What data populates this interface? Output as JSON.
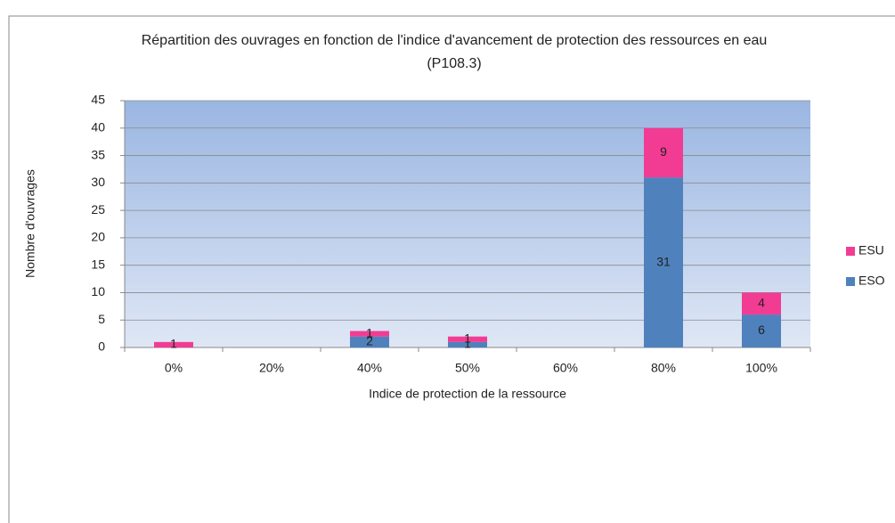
{
  "chart_data": {
    "type": "stacked_bar",
    "title": [
      "Répartition des ouvrages en fonction de l'indice d'avancement de protection des ressources  en eau",
      "(P108.3)"
    ],
    "x_label": "Indice de protection de la ressource",
    "y_label": "Nombre d'ouvrages",
    "categories": [
      "0%",
      "20%",
      "40%",
      "50%",
      "60%",
      "80%",
      "100%"
    ],
    "series": [
      {
        "name": "ESO",
        "color": "#4f81bd",
        "values": [
          0,
          0,
          2,
          1,
          0,
          31,
          6
        ]
      },
      {
        "name": "ESU",
        "color": "#f23c94",
        "values": [
          1,
          0,
          1,
          1,
          0,
          9,
          4
        ]
      }
    ],
    "ylim": [
      0,
      45
    ],
    "yticks": [
      0,
      5,
      10,
      15,
      20,
      25,
      30,
      35,
      40,
      45
    ],
    "grid": true,
    "legend": "right"
  }
}
